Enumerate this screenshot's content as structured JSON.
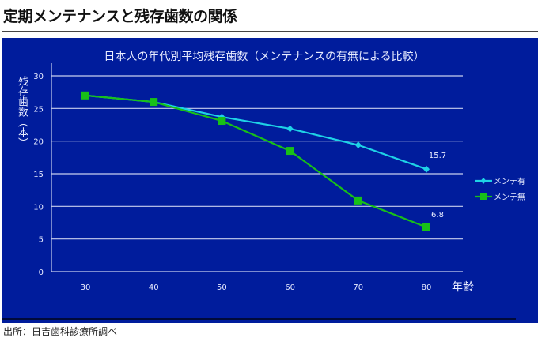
{
  "page_title": "定期メンテナンスと残存歯数の関係",
  "source": "出所：日吉歯科診療所調べ",
  "chart_data": {
    "type": "line",
    "title": "日本人の年代別平均残存歯数（メンテナンスの有無による比較）",
    "xlabel": "年齢",
    "ylabel": "残存歯数（本）",
    "categories": [
      "30",
      "40",
      "50",
      "60",
      "70",
      "80"
    ],
    "ylim": [
      0,
      30
    ],
    "yticks": [
      "0",
      "5",
      "10",
      "15",
      "20",
      "25",
      "30"
    ],
    "grid": true,
    "legend": "right",
    "series": [
      {
        "name": "メンテ有",
        "color": "#1ed2e6",
        "marker": "diamond",
        "values": [
          27.0,
          26.0,
          23.7,
          21.9,
          19.4,
          15.7
        ],
        "labels": {
          "5": "15.7"
        }
      },
      {
        "name": "メンテ無",
        "color": "#18c018",
        "marker": "square",
        "values": [
          27.0,
          26.0,
          23.1,
          18.5,
          10.9,
          6.8
        ],
        "labels": {
          "5": "6.8"
        }
      }
    ]
  }
}
